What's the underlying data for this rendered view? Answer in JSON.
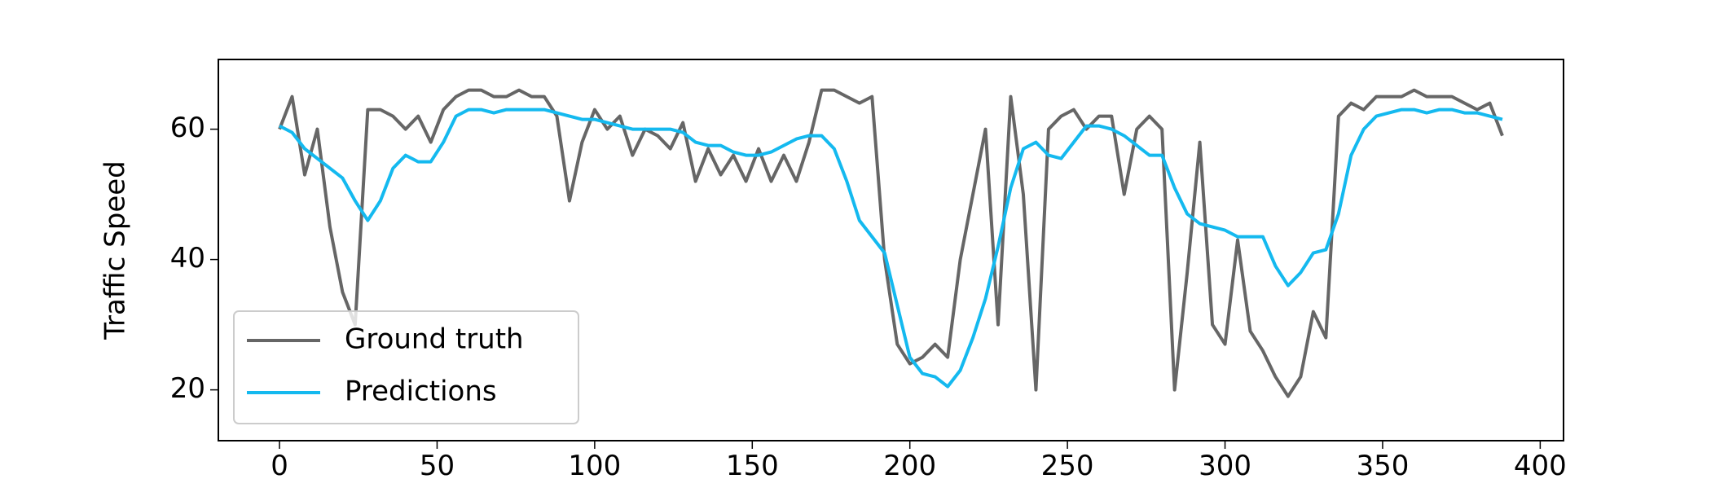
{
  "chart_data": {
    "type": "line",
    "y_label": "Traffic Speed",
    "x": [
      0,
      4,
      8,
      12,
      16,
      20,
      24,
      28,
      32,
      36,
      40,
      44,
      48,
      52,
      56,
      60,
      64,
      68,
      72,
      76,
      80,
      84,
      88,
      92,
      96,
      100,
      104,
      108,
      112,
      116,
      120,
      124,
      128,
      132,
      136,
      140,
      144,
      148,
      152,
      156,
      160,
      164,
      168,
      172,
      176,
      180,
      184,
      188,
      192,
      196,
      200,
      204,
      208,
      212,
      216,
      220,
      224,
      228,
      232,
      236,
      240,
      244,
      248,
      252,
      256,
      260,
      264,
      268,
      272,
      276,
      280,
      284,
      288,
      292,
      296,
      300,
      304,
      308,
      312,
      316,
      320,
      324,
      328,
      332,
      336,
      340,
      344,
      348,
      352,
      356,
      360,
      364,
      368,
      372,
      376,
      380,
      384,
      388
    ],
    "series": [
      {
        "name": "Ground truth",
        "color": "#666666",
        "values": [
          60,
          65,
          53,
          60,
          45,
          35,
          30,
          63,
          63,
          62,
          60,
          62,
          58,
          63,
          65,
          66,
          66,
          65,
          65,
          66,
          65,
          65,
          62,
          49,
          58,
          63,
          60,
          62,
          56,
          60,
          59,
          57,
          61,
          52,
          57,
          53,
          56,
          52,
          57,
          52,
          56,
          52,
          58,
          66,
          66,
          65,
          64,
          65,
          40,
          27,
          24,
          25,
          27,
          25,
          40,
          50,
          60,
          30,
          65,
          50,
          20,
          60,
          62,
          63,
          60,
          62,
          62,
          50,
          60,
          62,
          60,
          20,
          38,
          58,
          30,
          27,
          43,
          29,
          26,
          22,
          19,
          22,
          32,
          28,
          62,
          64,
          63,
          65,
          65,
          65,
          66,
          65,
          65,
          65,
          64,
          63,
          64,
          59
        ]
      },
      {
        "name": "Predictions",
        "color": "#14b9ef",
        "values": [
          60.5,
          59.5,
          57,
          55.5,
          54,
          52.5,
          49,
          46,
          49,
          54,
          56,
          55,
          55,
          58,
          62,
          63,
          63,
          62.5,
          63,
          63,
          63,
          63,
          62.5,
          62,
          61.5,
          61.5,
          61,
          60.5,
          60,
          60,
          60,
          60,
          59.5,
          58,
          57.5,
          57.5,
          56.5,
          56,
          56,
          56.5,
          57.5,
          58.5,
          59,
          59,
          57,
          52,
          46,
          43.5,
          41,
          33,
          25,
          22.5,
          22,
          20.5,
          23,
          28,
          34,
          42,
          51,
          57,
          58,
          56,
          55.5,
          58,
          60.5,
          60.5,
          60,
          59,
          57.5,
          56,
          56,
          51,
          47,
          45.5,
          45,
          44.5,
          43.5,
          43.5,
          43.5,
          39,
          36,
          38,
          41,
          41.5,
          47,
          56,
          60,
          62,
          62.5,
          63,
          63,
          62.5,
          63,
          63,
          62.5,
          62.5,
          62,
          61.5
        ]
      }
    ],
    "xlim": [
      -19.4,
      407.4
    ],
    "ylim": [
      12.2,
      70.7
    ],
    "xticks": [
      0,
      50,
      100,
      150,
      200,
      250,
      300,
      350,
      400
    ],
    "yticks": [
      20,
      40,
      60
    ],
    "legend": "lower left"
  }
}
